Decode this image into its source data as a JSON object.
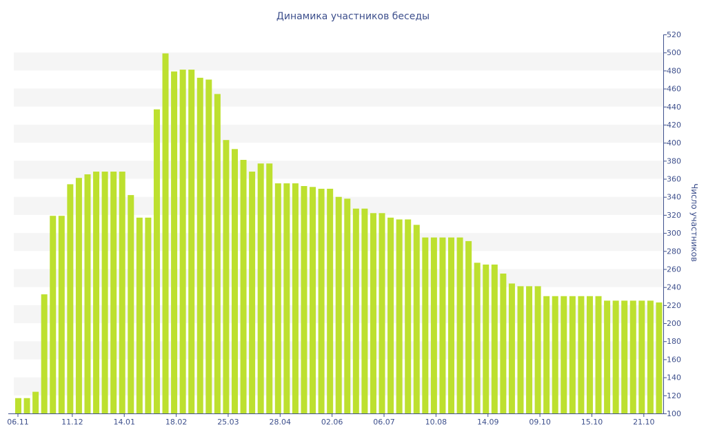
{
  "chart_data": {
    "type": "bar",
    "title": "Динамика участников беседы",
    "xlabel": "",
    "ylabel": "Число участников",
    "ylim": [
      100,
      520
    ],
    "y_ticks": [
      100,
      120,
      140,
      160,
      180,
      200,
      220,
      240,
      260,
      280,
      300,
      320,
      340,
      360,
      380,
      400,
      420,
      440,
      460,
      480,
      500,
      520
    ],
    "y_axis_side": "right",
    "grid": "alternating horizontal bands",
    "x_tick_labels": [
      {
        "label": "06.11",
        "index": 0
      },
      {
        "label": "11.12",
        "index": 6
      },
      {
        "label": "14.01",
        "index": 12
      },
      {
        "label": "18.02",
        "index": 18
      },
      {
        "label": "25.03",
        "index": 24
      },
      {
        "label": "28.04",
        "index": 30
      },
      {
        "label": "02.06",
        "index": 36
      },
      {
        "label": "06.07",
        "index": 42
      },
      {
        "label": "10.08",
        "index": 48
      },
      {
        "label": "14.09",
        "index": 54
      },
      {
        "label": "09.10",
        "index": 60
      },
      {
        "label": "15.10",
        "index": 66
      },
      {
        "label": "21.10",
        "index": 72
      }
    ],
    "series": [
      {
        "color": "#bde02f",
        "values": [
          117,
          117,
          124,
          232,
          319,
          319,
          354,
          361,
          365,
          368,
          368,
          368,
          368,
          342,
          317,
          317,
          437,
          499,
          479,
          481,
          481,
          472,
          470,
          454,
          403,
          393,
          381,
          368,
          377,
          377,
          355,
          355,
          355,
          352,
          351,
          349,
          349,
          340,
          338,
          327,
          327,
          322,
          322,
          317,
          315,
          315,
          309,
          295,
          295,
          295,
          295,
          295,
          291,
          267,
          265,
          265,
          255,
          244,
          241,
          241,
          241,
          230,
          230,
          230,
          230,
          230,
          230,
          230,
          225,
          225,
          225,
          225,
          225,
          225,
          223
        ]
      }
    ]
  },
  "colors": {
    "bar": "#bde02f",
    "band": "#f5f5f5",
    "text": "#3d4f8c",
    "axis": "#3d4f8c"
  }
}
